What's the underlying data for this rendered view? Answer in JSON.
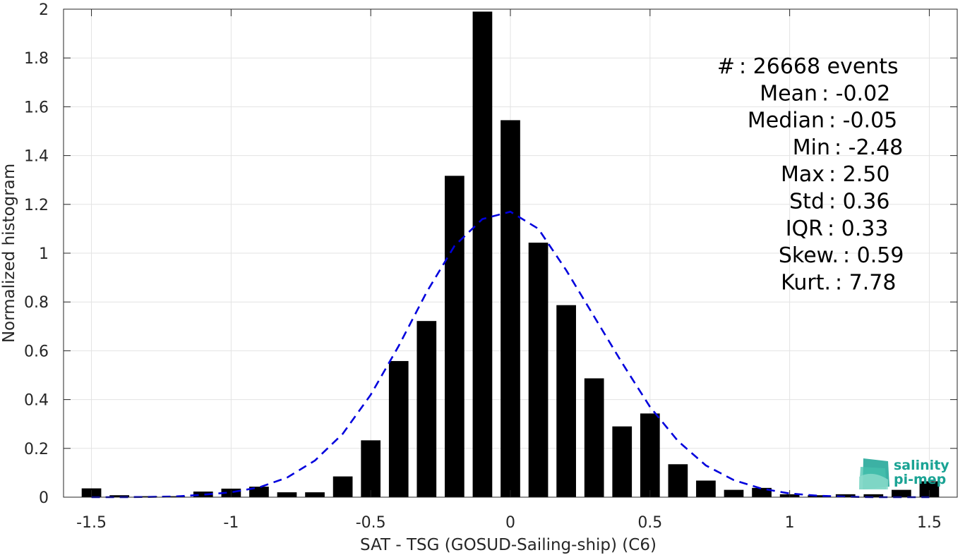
{
  "chart_data": {
    "type": "bar",
    "xlabel": "SAT - TSG (GOSUD-Sailing-ship) (C6)",
    "ylabel": "Normalized histogram",
    "xlim": [
      -1.6,
      1.6
    ],
    "ylim": [
      0,
      2
    ],
    "grid": true,
    "xticks": [
      -1.5,
      -1,
      -0.5,
      0,
      0.5,
      1,
      1.5
    ],
    "xtick_labels": [
      "-1.5",
      "-1",
      "-0.5",
      "0",
      "0.5",
      "1",
      "1.5"
    ],
    "yticks": [
      0,
      0.2,
      0.4,
      0.6,
      0.8,
      1,
      1.2,
      1.4,
      1.6,
      1.8,
      2
    ],
    "ytick_labels": [
      "0",
      "0.2",
      "0.4",
      "0.6",
      "0.8",
      "1",
      "1.2",
      "1.4",
      "1.6",
      "1.8",
      "2"
    ],
    "bar_color": "#000000",
    "bars": {
      "x": [
        -1.5,
        -1.4,
        -1.3,
        -1.2,
        -1.1,
        -1.0,
        -0.9,
        -0.8,
        -0.7,
        -0.6,
        -0.5,
        -0.4,
        -0.3,
        -0.2,
        -0.1,
        0.0,
        0.1,
        0.2,
        0.3,
        0.4,
        0.5,
        0.6,
        0.7,
        0.8,
        0.9,
        1.0,
        1.1,
        1.2,
        1.3,
        1.4,
        1.5
      ],
      "values": [
        0.036,
        0.008,
        0.004,
        0.004,
        0.023,
        0.035,
        0.043,
        0.02,
        0.02,
        0.085,
        0.233,
        0.558,
        0.722,
        1.317,
        1.99,
        1.545,
        1.043,
        0.787,
        0.487,
        0.29,
        0.343,
        0.135,
        0.068,
        0.03,
        0.038,
        0.012,
        0.008,
        0.012,
        0.012,
        0.03,
        0.065
      ]
    },
    "fit_curve": {
      "style": "dashed",
      "color": "#0000dd",
      "x": [
        -1.5,
        -1.4,
        -1.3,
        -1.2,
        -1.1,
        -1.0,
        -0.9,
        -0.8,
        -0.7,
        -0.6,
        -0.5,
        -0.4,
        -0.3,
        -0.2,
        -0.1,
        0.0,
        0.1,
        0.2,
        0.3,
        0.4,
        0.5,
        0.6,
        0.7,
        0.8,
        0.9,
        1.0,
        1.1,
        1.2,
        1.3,
        1.4,
        1.5
      ],
      "y": [
        0.0,
        0.0,
        0.001,
        0.003,
        0.01,
        0.02,
        0.04,
        0.08,
        0.15,
        0.26,
        0.42,
        0.62,
        0.84,
        1.03,
        1.14,
        1.17,
        1.1,
        0.93,
        0.74,
        0.55,
        0.37,
        0.23,
        0.13,
        0.07,
        0.035,
        0.015,
        0.006,
        0.002,
        0.0,
        0.0,
        0.0
      ]
    },
    "stats": [
      {
        "label": "#  : 26668 events"
      },
      {
        "label": "Mean : -0.02"
      },
      {
        "label": "Median : -0.05"
      },
      {
        "label": "Min : -2.48"
      },
      {
        "label": "Max : 2.50"
      },
      {
        "label": "Std : 0.36"
      },
      {
        "label": "IQR : 0.33"
      },
      {
        "label": "Skew. : 0.59"
      },
      {
        "label": "Kurt. : 7.78"
      }
    ]
  },
  "logo": {
    "line1": "salinity",
    "line2": "pi-mep",
    "color": "#1aa394"
  }
}
